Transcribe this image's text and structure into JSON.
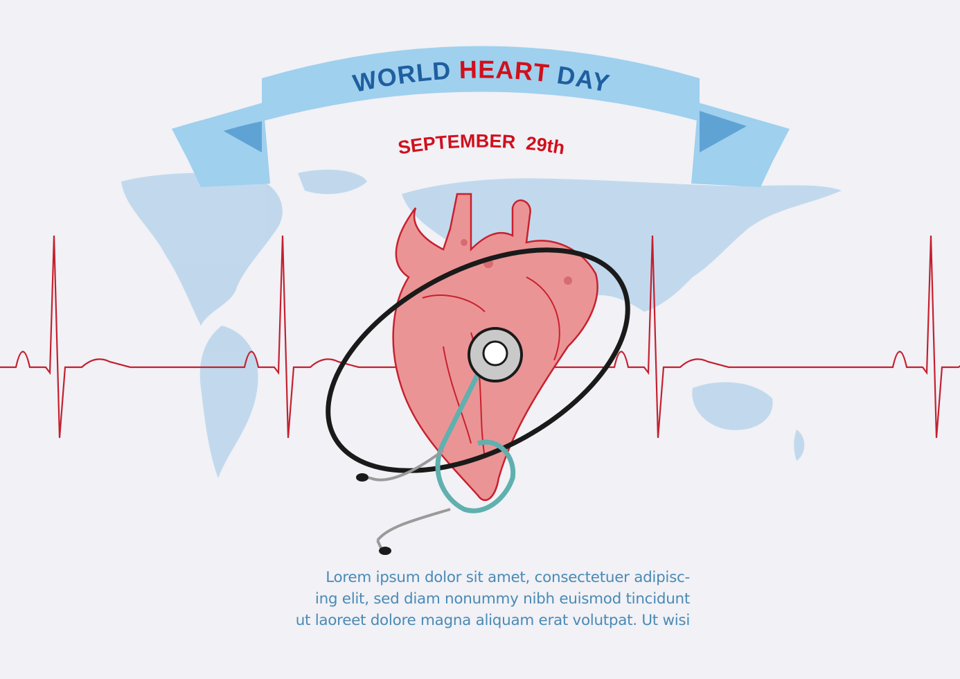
{
  "banner": {
    "title_part1": "WORLD ",
    "title_part2": "HEART",
    "title_part3": " DAY",
    "date": "SEPTEMBER  29th"
  },
  "body_text": {
    "lines": [
      "Lorem ipsum dolor sit amet, consectetuer adipisc-",
      "ing elit, sed diam nonummy nibh euismod tincidunt",
      "ut laoreet dolore magna aliquam erat volutpat. Ut wisi"
    ]
  },
  "colors": {
    "background": "#f1f1f6",
    "ribbon": "#9fd0ee",
    "ribbon_fold": "#5fa3d4",
    "title_blue": "#1f5fa0",
    "title_red": "#d0101c",
    "ecg_line": "#c4202e",
    "map": "#bcd6ec",
    "heart": "#e88a8c",
    "body_text": "#4a8ab5"
  },
  "icons": [
    "world-map",
    "heart-illustration",
    "stethoscope",
    "ecg-heartbeat-line",
    "ribbon-banner"
  ]
}
